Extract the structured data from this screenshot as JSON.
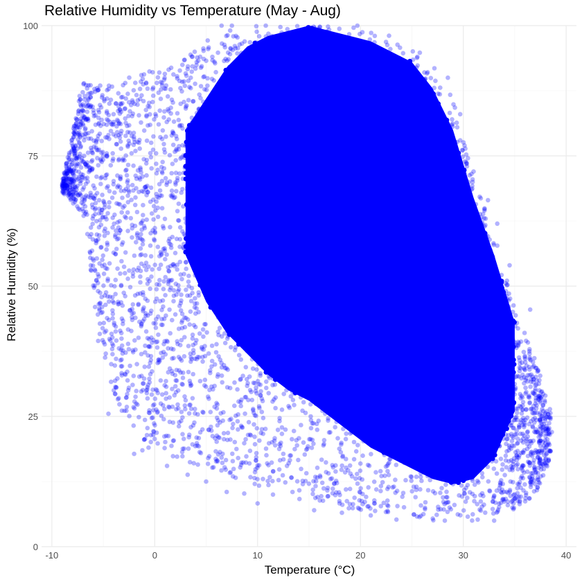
{
  "chart_data": {
    "type": "scatter",
    "title": "Relative Humidity vs Temperature (May - Aug)",
    "xlabel": "Temperature (°C)",
    "ylabel": "Relative Humidity (%)",
    "xlim": [
      -11,
      41
    ],
    "ylim": [
      0,
      100
    ],
    "x_ticks": [
      -10,
      0,
      10,
      20,
      30,
      40
    ],
    "y_ticks": [
      0,
      25,
      50,
      75,
      100
    ],
    "grid": true,
    "legend": "none",
    "point_color": "#0000FF",
    "point_opacity": 0.3,
    "outline_x": [
      -9,
      -7,
      -5,
      -3,
      -1,
      1,
      3,
      5,
      7,
      9,
      11,
      13,
      15,
      17,
      19,
      21,
      23,
      25,
      27,
      29,
      31,
      33,
      35,
      37,
      38.5
    ],
    "outline_y_min": [
      68,
      64,
      36,
      24,
      20,
      18,
      16,
      15,
      14,
      12,
      11,
      9,
      9,
      8,
      7,
      7,
      6,
      6,
      5,
      5,
      5,
      6,
      7,
      10,
      17
    ],
    "outline_y_max": [
      70,
      89,
      89,
      90,
      91,
      92,
      94,
      97,
      99,
      100,
      100,
      100,
      100,
      100,
      100,
      99,
      98,
      96,
      93,
      86,
      71,
      60,
      46,
      36,
      26
    ],
    "core_x": [
      3,
      5,
      7,
      9,
      11,
      13,
      15,
      17,
      19,
      21,
      23,
      25,
      27,
      29,
      31,
      33,
      35
    ],
    "core_y_min": [
      56,
      47,
      41,
      37,
      33,
      30,
      28,
      25,
      22,
      19,
      17,
      15,
      13,
      12,
      13,
      17,
      26
    ],
    "core_y_max": [
      80,
      86,
      92,
      96,
      98,
      99,
      100,
      99,
      98,
      97,
      95,
      93,
      88,
      80,
      67,
      56,
      43
    ],
    "outliers": [
      {
        "x": -9.0,
        "y": 69.5
      },
      {
        "x": -7.6,
        "y": 82.0
      },
      {
        "x": -7.3,
        "y": 86.5
      },
      {
        "x": -7.1,
        "y": 66.0
      },
      {
        "x": -6.0,
        "y": 67.0
      },
      {
        "x": -5.6,
        "y": 88.0
      },
      {
        "x": -5.3,
        "y": 88.5
      },
      {
        "x": -5.0,
        "y": 75.0
      },
      {
        "x": -4.5,
        "y": 79.0
      },
      {
        "x": -4.0,
        "y": 83.0
      },
      {
        "x": -3.5,
        "y": 84.5
      },
      {
        "x": -2.8,
        "y": 86.0
      },
      {
        "x": -1.3,
        "y": 90.5
      },
      {
        "x": -5.2,
        "y": 57.5
      },
      {
        "x": -5.8,
        "y": 46.0
      },
      {
        "x": -5.5,
        "y": 39.5
      },
      {
        "x": -4.5,
        "y": 25.5
      },
      {
        "x": -3.5,
        "y": 28.5
      },
      {
        "x": -2.0,
        "y": 17.8
      },
      {
        "x": -1.2,
        "y": 18.5
      },
      {
        "x": -0.6,
        "y": 19.0
      },
      {
        "x": 1.2,
        "y": 15.5
      },
      {
        "x": 3.2,
        "y": 13.8
      },
      {
        "x": 5.0,
        "y": 12.5
      },
      {
        "x": 7.0,
        "y": 10.5
      },
      {
        "x": 8.7,
        "y": 10.2
      },
      {
        "x": 10.0,
        "y": 8.3
      },
      {
        "x": 11.5,
        "y": 10.0
      },
      {
        "x": 15.5,
        "y": 7.0
      },
      {
        "x": 18.2,
        "y": 6.5
      },
      {
        "x": 21.0,
        "y": 6.0
      },
      {
        "x": 23.5,
        "y": 5.2
      },
      {
        "x": 25.5,
        "y": 5.8
      },
      {
        "x": 28.2,
        "y": 5.0
      },
      {
        "x": 31.4,
        "y": 5.2
      },
      {
        "x": 33.0,
        "y": 5.0
      },
      {
        "x": 35.6,
        "y": 9.6
      },
      {
        "x": 37.0,
        "y": 12.0
      },
      {
        "x": 38.3,
        "y": 16.5
      },
      {
        "x": 38.6,
        "y": 22.0
      },
      {
        "x": 38.1,
        "y": 26.0
      },
      {
        "x": 36.5,
        "y": 45.5
      },
      {
        "x": 34.5,
        "y": 54.0
      },
      {
        "x": 33.3,
        "y": 62.0
      },
      {
        "x": 32.4,
        "y": 66.5
      },
      {
        "x": 31.0,
        "y": 72.0
      },
      {
        "x": 29.7,
        "y": 83.0
      },
      {
        "x": 28.5,
        "y": 90.0
      },
      {
        "x": 6.5,
        "y": 100.0
      },
      {
        "x": 7.5,
        "y": 100.0
      },
      {
        "x": 10.8,
        "y": 100.0
      },
      {
        "x": 19.7,
        "y": 100.0
      },
      {
        "x": 5.2,
        "y": 95.5
      },
      {
        "x": 3.5,
        "y": 90.0
      },
      {
        "x": 2.5,
        "y": 88.0
      }
    ]
  }
}
